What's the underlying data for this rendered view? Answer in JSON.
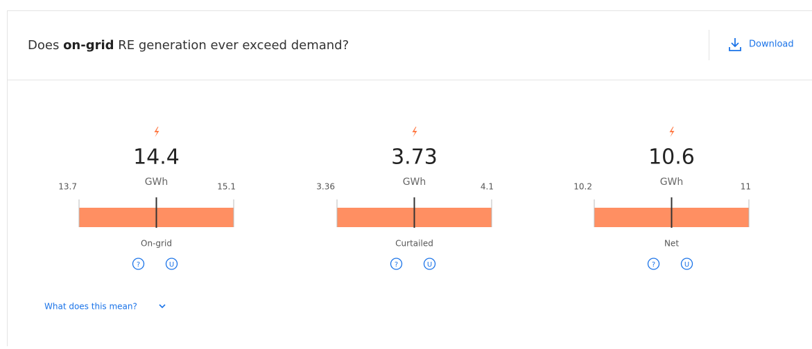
{
  "header": {
    "title_start": "Does",
    "title_bold": "on-grid",
    "title_end": "RE generation ever exceed demand?",
    "download": "Download"
  },
  "gauges": [
    {
      "value": 14.4,
      "unit": "GWh",
      "min": 13.7,
      "max": 15.1,
      "label": "On-grid",
      "icons": [
        "?",
        "U"
      ]
    },
    {
      "value": 3.73,
      "unit": "GWh",
      "min": 3.36,
      "max": 4.1,
      "label": "Curtailed",
      "icons": [
        "?",
        "U"
      ]
    },
    {
      "value": 10.6,
      "unit": "GWh",
      "min": 10.2,
      "max": 11,
      "label": "Net",
      "icons": [
        "?",
        "U"
      ]
    }
  ],
  "footer": {
    "link": "What does this mean?"
  }
}
